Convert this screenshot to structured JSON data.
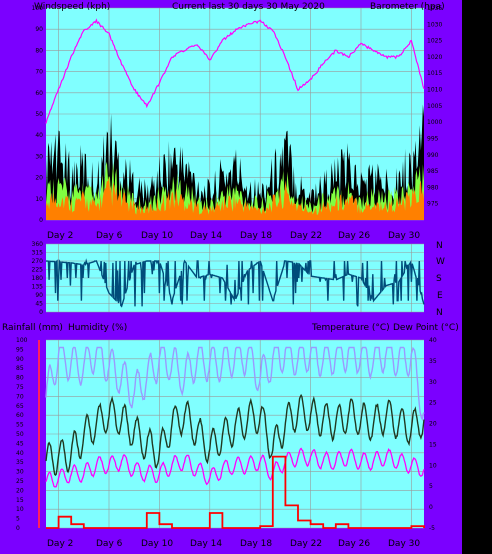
{
  "colors": {
    "frame": "#7b00ff",
    "plot_bg": "#80ffff",
    "grid": "#9a9a9a",
    "black": "#000000",
    "magenta": "#ff00ff",
    "orange": "#ff8000",
    "green": "#80ff40",
    "teal_line": "#004c7a",
    "lavender": "#9a9aff",
    "dark_green": "#203820",
    "red": "#ff0000",
    "axis_red": "#ff2060"
  },
  "header": {
    "left": "Windspeed (kph)",
    "center": "Current last 30 days 30 May 2020",
    "right": "Barometer (hpa)"
  },
  "direction_labels": [
    "N",
    "W",
    "S",
    "E",
    "N"
  ],
  "lower_header": {
    "rain": "Rainfall (mm)",
    "humidity": "Humidity (%)",
    "temp": "Temperature (°C)",
    "dew": "Dew Point (°C)"
  },
  "x_ticks": [
    "Day 2",
    "Day 6",
    "Day 10",
    "Day 14",
    "Day 18",
    "Day 22",
    "Day 26",
    "Day 30"
  ],
  "chart_data": [
    {
      "type": "area",
      "title": "Current last 30 days 30 May 2020",
      "ylabel": "Windspeed (kph)",
      "y2label": "Barometer (hpa)",
      "ylim": [
        0,
        100
      ],
      "y2lim": [
        970,
        1035
      ],
      "yticks": [
        0,
        10,
        20,
        30,
        40,
        50,
        60,
        70,
        80,
        90,
        100
      ],
      "y2ticks": [
        975,
        980,
        985,
        990,
        995,
        1000,
        1005,
        1010,
        1015,
        1020,
        1025,
        1030,
        1035
      ],
      "series": [
        {
          "name": "Windspeed (kph)",
          "x": [
            1,
            2,
            3,
            4,
            5,
            6,
            7,
            8,
            9,
            10,
            11,
            12,
            13,
            14,
            15,
            16,
            17,
            18,
            19,
            20,
            21,
            22,
            23,
            24,
            25,
            26,
            27,
            28,
            29,
            30,
            31
          ],
          "values": [
            30,
            35,
            25,
            30,
            20,
            45,
            30,
            20,
            15,
            25,
            35,
            30,
            20,
            15,
            25,
            30,
            20,
            15,
            25,
            40,
            20,
            15,
            20,
            25,
            30,
            20,
            25,
            20,
            25,
            30,
            50
          ]
        },
        {
          "name": "Barometer (hpa)",
          "x": [
            1,
            2,
            3,
            4,
            5,
            6,
            7,
            8,
            9,
            10,
            11,
            12,
            13,
            14,
            15,
            16,
            17,
            18,
            19,
            20,
            21,
            22,
            23,
            24,
            25,
            26,
            27,
            28,
            29,
            30,
            31
          ],
          "values": [
            1000,
            1010,
            1020,
            1028,
            1031,
            1027,
            1018,
            1010,
            1005,
            1012,
            1020,
            1022,
            1024,
            1019,
            1025,
            1028,
            1030,
            1031,
            1028,
            1020,
            1010,
            1013,
            1018,
            1022,
            1020,
            1024,
            1022,
            1020,
            1020,
            1025,
            1010
          ]
        }
      ]
    },
    {
      "type": "line",
      "title": "",
      "ylabel": "",
      "ylim": [
        0,
        360
      ],
      "yticks": [
        0,
        45,
        90,
        135,
        180,
        225,
        270,
        315,
        360
      ],
      "series": [
        {
          "name": "Wind direction",
          "x": [
            1,
            2,
            3,
            4,
            5,
            6,
            7,
            8,
            9,
            10,
            11,
            12,
            13,
            14,
            15,
            16,
            17,
            18,
            19,
            20,
            21,
            22,
            23,
            24,
            25,
            26,
            27,
            28,
            29,
            30,
            31
          ],
          "values": [
            270,
            265,
            260,
            250,
            270,
            100,
            30,
            250,
            270,
            270,
            60,
            270,
            180,
            200,
            180,
            60,
            220,
            270,
            60,
            270,
            260,
            190,
            180,
            170,
            200,
            180,
            60,
            140,
            160,
            270,
            40
          ]
        }
      ]
    },
    {
      "type": "line",
      "title": "",
      "ylabel": "Rainfall (mm) Humidity (%)",
      "y2label": "Temperature (°C) Dew Point (°C)",
      "ylim": [
        0,
        100
      ],
      "y2lim": [
        -5,
        40
      ],
      "yticks": [
        0,
        5,
        10,
        15,
        20,
        25,
        30,
        35,
        40,
        45,
        50,
        55,
        60,
        65,
        70,
        75,
        80,
        85,
        90,
        95,
        100
      ],
      "y2ticks": [
        -5,
        0,
        5,
        10,
        15,
        20,
        25,
        30,
        35,
        40
      ],
      "series": [
        {
          "name": "Humidity (%)",
          "x": [
            1,
            2,
            3,
            4,
            5,
            6,
            7,
            8,
            9,
            10,
            11,
            12,
            13,
            14,
            15,
            16,
            17,
            18,
            19,
            20,
            21,
            22,
            23,
            24,
            25,
            26,
            27,
            28,
            29,
            30,
            31
          ],
          "values": [
            70,
            92,
            88,
            86,
            94,
            86,
            80,
            72,
            80,
            90,
            88,
            80,
            90,
            88,
            88,
            92,
            92,
            80,
            90,
            94,
            90,
            94,
            90,
            92,
            94,
            92,
            90,
            94,
            90,
            92,
            62
          ]
        },
        {
          "name": "Temperature (°C)",
          "x": [
            1,
            2,
            3,
            4,
            5,
            6,
            7,
            8,
            9,
            10,
            11,
            12,
            13,
            14,
            15,
            16,
            17,
            18,
            19,
            20,
            21,
            22,
            23,
            24,
            25,
            26,
            27,
            28,
            29,
            30,
            31
          ],
          "values": [
            11,
            12,
            13,
            17,
            20,
            22,
            21,
            18,
            15,
            13,
            20,
            22,
            18,
            14,
            17,
            19,
            21,
            22,
            14,
            20,
            23,
            22,
            21,
            20,
            22,
            21,
            20,
            22,
            20,
            19,
            21
          ]
        },
        {
          "name": "Dew Point (°C)",
          "x": [
            1,
            2,
            3,
            4,
            5,
            6,
            7,
            8,
            9,
            10,
            11,
            12,
            13,
            14,
            15,
            16,
            17,
            18,
            19,
            20,
            21,
            22,
            23,
            24,
            25,
            26,
            27,
            28,
            29,
            30,
            31
          ],
          "values": [
            6,
            7,
            8,
            8,
            10,
            10,
            11,
            9,
            8,
            8,
            10,
            11,
            9,
            7,
            9,
            10,
            10,
            11,
            8,
            11,
            12,
            12,
            11,
            11,
            12,
            11,
            11,
            12,
            11,
            10,
            9
          ]
        },
        {
          "name": "Rainfall (mm)",
          "x": [
            1,
            2,
            3,
            4,
            5,
            6,
            7,
            8,
            9,
            10,
            11,
            12,
            13,
            14,
            15,
            16,
            17,
            18,
            19,
            20,
            21,
            22,
            23,
            24,
            25,
            26,
            27,
            28,
            29,
            30,
            31
          ],
          "values": [
            0,
            6,
            2,
            0,
            0,
            0,
            0,
            0,
            8,
            2,
            0,
            0,
            0,
            8,
            0,
            0,
            0,
            1,
            38,
            12,
            4,
            2,
            0,
            2,
            0,
            0,
            0,
            0,
            0,
            1,
            0
          ]
        }
      ]
    }
  ]
}
